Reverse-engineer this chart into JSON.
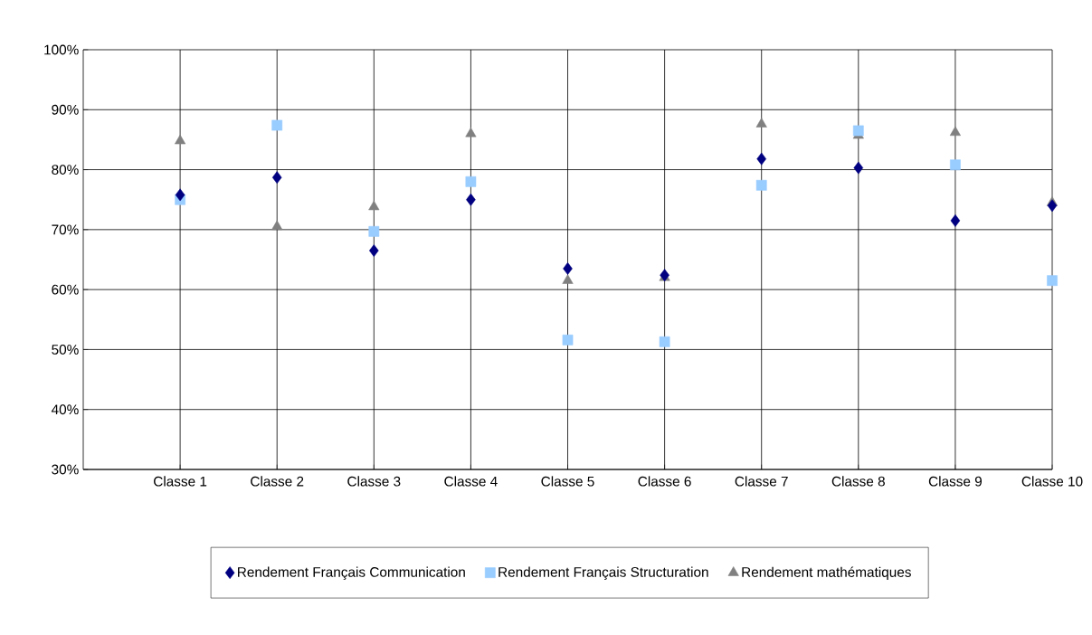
{
  "chart_data": {
    "type": "scatter",
    "categories": [
      "Classe 1",
      "Classe 2",
      "Classe 3",
      "Classe 4",
      "Classe 5",
      "Classe 6",
      "Classe 7",
      "Classe 8",
      "Classe 9",
      "Classe 10"
    ],
    "series": [
      {
        "name": "Rendement Français Communication",
        "color": "#000080",
        "marker": "diamond",
        "values": [
          75.8,
          78.7,
          66.5,
          75,
          63.5,
          62.4,
          81.8,
          80.3,
          71.5,
          74
        ]
      },
      {
        "name": "Rendement Français Structuration",
        "color": "#99ccff",
        "marker": "square",
        "values": [
          75,
          87.4,
          69.7,
          78,
          51.6,
          51.3,
          77.4,
          86.5,
          80.8,
          61.5
        ]
      },
      {
        "name": "Rendement mathématiques",
        "color": "#808080",
        "marker": "triangle",
        "values": [
          84.8,
          70.5,
          73.8,
          86,
          61.5,
          62,
          87.6,
          85.7,
          86.2,
          74.5
        ]
      }
    ],
    "ylim": [
      30,
      100
    ],
    "yticks": [
      {
        "value": 30,
        "label": "30%"
      },
      {
        "value": 40,
        "label": "40%"
      },
      {
        "value": 50,
        "label": "50%"
      },
      {
        "value": 60,
        "label": "60%"
      },
      {
        "value": 70,
        "label": "70%"
      },
      {
        "value": 80,
        "label": "80%"
      },
      {
        "value": 90,
        "label": "90%"
      },
      {
        "value": 100,
        "label": "100%"
      }
    ],
    "grid": true,
    "legend": "bottom"
  }
}
